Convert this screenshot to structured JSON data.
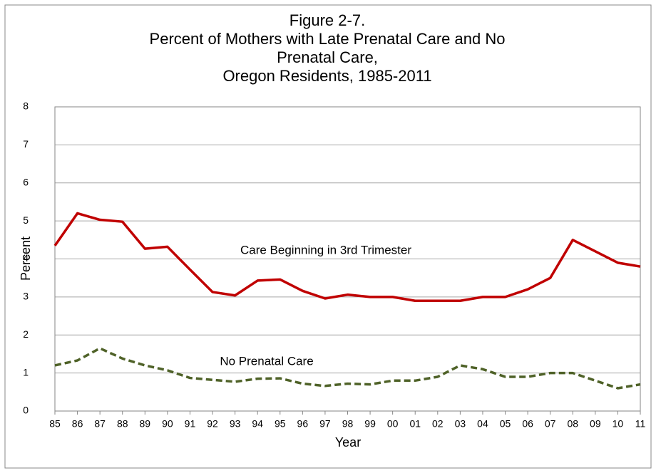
{
  "chart_data": {
    "type": "line",
    "title": [
      "Figure 2-7.",
      "Percent of Mothers with Late Prenatal Care and No",
      "Prenatal Care,",
      "Oregon Residents, 1985-2011"
    ],
    "x_label": "Year",
    "y_label": "Percent",
    "categories": [
      "85",
      "86",
      "87",
      "88",
      "89",
      "90",
      "91",
      "92",
      "93",
      "94",
      "95",
      "96",
      "97",
      "98",
      "99",
      "00",
      "01",
      "02",
      "03",
      "04",
      "05",
      "06",
      "07",
      "08",
      "09",
      "10",
      "11"
    ],
    "series": [
      {
        "name": "Care Beginning in 3rd Trimester",
        "color": "#c00000",
        "dashed": false,
        "values": [
          4.35,
          5.2,
          5.03,
          4.98,
          4.27,
          4.32,
          3.72,
          3.13,
          3.04,
          3.43,
          3.46,
          3.16,
          2.96,
          3.06,
          3.0,
          3.0,
          2.9,
          2.9,
          2.9,
          3.0,
          3.0,
          3.2,
          3.5,
          4.5,
          4.2,
          3.9,
          3.8
        ]
      },
      {
        "name": "No Prenatal Care",
        "color": "#4f6228",
        "dashed": true,
        "values": [
          1.2,
          1.33,
          1.65,
          1.38,
          1.2,
          1.07,
          0.87,
          0.82,
          0.77,
          0.85,
          0.86,
          0.72,
          0.66,
          0.72,
          0.7,
          0.8,
          0.8,
          0.9,
          1.2,
          1.1,
          0.9,
          0.9,
          1.0,
          1.0,
          0.8,
          0.6,
          0.7
        ]
      }
    ],
    "ylim": [
      0,
      8
    ],
    "yticks": [
      0,
      1,
      2,
      3,
      4,
      5,
      6,
      7,
      8
    ],
    "grid": true
  }
}
